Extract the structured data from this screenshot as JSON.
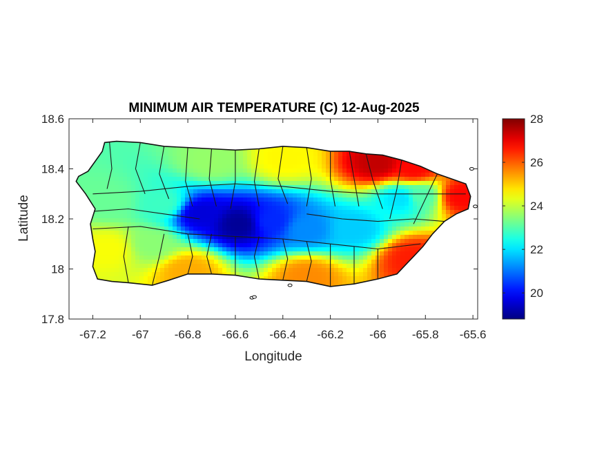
{
  "chart_data": {
    "type": "heatmap",
    "title": "MINIMUM AIR TEMPERATURE (C) 12-Aug-2025",
    "xlabel": "Longitude",
    "ylabel": "Latitude",
    "xlim": [
      -67.3,
      -65.58
    ],
    "ylim": [
      17.8,
      18.6
    ],
    "xticks": [
      -67.2,
      -67,
      -66.8,
      -66.6,
      -66.4,
      -66.2,
      -66,
      -65.8,
      -65.6
    ],
    "xtick_labels": [
      "-67.2",
      "-67",
      "-66.8",
      "-66.6",
      "-66.4",
      "-66.2",
      "-66",
      "-65.8",
      "-65.6"
    ],
    "yticks": [
      17.8,
      18,
      18.2,
      18.4,
      18.6
    ],
    "ytick_labels": [
      "17.8",
      "18",
      "18.2",
      "18.4",
      "18.6"
    ],
    "colorbar": {
      "colormap": "jet",
      "range": [
        18.8,
        28
      ],
      "ticks": [
        20,
        22,
        24,
        26,
        28
      ],
      "tick_labels": [
        "20",
        "22",
        "24",
        "26",
        "28"
      ]
    },
    "grid": false,
    "island_outline": [
      [
        -67.26,
        18.37
      ],
      [
        -67.22,
        18.39
      ],
      [
        -67.19,
        18.43
      ],
      [
        -67.16,
        18.47
      ],
      [
        -67.15,
        18.505
      ],
      [
        -67.1,
        18.51
      ],
      [
        -67.0,
        18.505
      ],
      [
        -66.9,
        18.49
      ],
      [
        -66.8,
        18.485
      ],
      [
        -66.7,
        18.48
      ],
      [
        -66.6,
        18.475
      ],
      [
        -66.5,
        18.48
      ],
      [
        -66.4,
        18.49
      ],
      [
        -66.3,
        18.485
      ],
      [
        -66.2,
        18.47
      ],
      [
        -66.12,
        18.47
      ],
      [
        -66.05,
        18.46
      ],
      [
        -65.98,
        18.455
      ],
      [
        -65.9,
        18.435
      ],
      [
        -65.82,
        18.41
      ],
      [
        -65.75,
        18.38
      ],
      [
        -65.69,
        18.36
      ],
      [
        -65.63,
        18.34
      ],
      [
        -65.61,
        18.29
      ],
      [
        -65.62,
        18.24
      ],
      [
        -65.67,
        18.22
      ],
      [
        -65.72,
        18.19
      ],
      [
        -65.77,
        18.14
      ],
      [
        -65.81,
        18.09
      ],
      [
        -65.85,
        18.05
      ],
      [
        -65.88,
        18.02
      ],
      [
        -65.92,
        17.98
      ],
      [
        -66.0,
        17.96
      ],
      [
        -66.1,
        17.94
      ],
      [
        -66.2,
        17.93
      ],
      [
        -66.3,
        17.95
      ],
      [
        -66.4,
        17.955
      ],
      [
        -66.5,
        17.96
      ],
      [
        -66.6,
        17.975
      ],
      [
        -66.7,
        17.98
      ],
      [
        -66.8,
        17.98
      ],
      [
        -66.88,
        17.955
      ],
      [
        -66.95,
        17.935
      ],
      [
        -67.05,
        17.945
      ],
      [
        -67.12,
        17.95
      ],
      [
        -67.18,
        17.96
      ],
      [
        -67.2,
        18.01
      ],
      [
        -67.19,
        18.07
      ],
      [
        -67.2,
        18.12
      ],
      [
        -67.21,
        18.18
      ],
      [
        -67.19,
        18.24
      ],
      [
        -67.23,
        18.3
      ],
      [
        -67.27,
        18.35
      ]
    ],
    "temperature_centers": [
      {
        "lon": -66.58,
        "lat": 18.18,
        "value": 19.0,
        "radius": 0.09
      },
      {
        "lon": -66.75,
        "lat": 18.22,
        "value": 19.6,
        "radius": 0.07
      },
      {
        "lon": -66.45,
        "lat": 18.19,
        "value": 20.3,
        "radius": 0.08
      },
      {
        "lon": -66.3,
        "lat": 18.16,
        "value": 21.2,
        "radius": 0.07
      },
      {
        "lon": -66.1,
        "lat": 18.16,
        "value": 21.8,
        "radius": 0.07
      },
      {
        "lon": -65.9,
        "lat": 18.28,
        "value": 22.0,
        "radius": 0.06
      },
      {
        "lon": -65.82,
        "lat": 18.29,
        "value": 23.0,
        "radius": 0.05
      },
      {
        "lon": -66.9,
        "lat": 18.26,
        "value": 22.8,
        "radius": 0.09
      },
      {
        "lon": -66.95,
        "lat": 18.1,
        "value": 23.5,
        "radius": 0.08
      },
      {
        "lon": -67.13,
        "lat": 18.08,
        "value": 24.5,
        "radius": 0.08
      },
      {
        "lon": -66.0,
        "lat": 18.42,
        "value": 27.4,
        "radius": 0.08
      },
      {
        "lon": -65.85,
        "lat": 18.4,
        "value": 26.8,
        "radius": 0.07
      },
      {
        "lon": -65.65,
        "lat": 18.29,
        "value": 26.8,
        "radius": 0.05
      },
      {
        "lon": -65.85,
        "lat": 18.04,
        "value": 26.6,
        "radius": 0.06
      },
      {
        "lon": -66.3,
        "lat": 17.97,
        "value": 25.6,
        "radius": 0.08
      },
      {
        "lon": -66.8,
        "lat": 17.99,
        "value": 25.3,
        "radius": 0.05
      },
      {
        "lon": -67.13,
        "lat": 18.27,
        "value": 23.2,
        "radius": 0.06
      },
      {
        "lon": -66.4,
        "lat": 18.44,
        "value": 24.6,
        "radius": 0.1
      },
      {
        "lon": -66.7,
        "lat": 18.43,
        "value": 23.6,
        "radius": 0.08
      }
    ],
    "municipality_boundaries": [
      [
        [
          -67.13,
          18.51
        ],
        [
          -67.12,
          18.4
        ],
        [
          -67.14,
          18.32
        ]
      ],
      [
        [
          -67.0,
          18.505
        ],
        [
          -67.02,
          18.4
        ],
        [
          -66.98,
          18.3
        ]
      ],
      [
        [
          -66.9,
          18.49
        ],
        [
          -66.92,
          18.38
        ],
        [
          -66.88,
          18.28
        ]
      ],
      [
        [
          -66.8,
          18.485
        ],
        [
          -66.81,
          18.35
        ],
        [
          -66.78,
          18.25
        ]
      ],
      [
        [
          -66.7,
          18.48
        ],
        [
          -66.71,
          18.36
        ],
        [
          -66.68,
          18.25
        ]
      ],
      [
        [
          -66.6,
          18.475
        ],
        [
          -66.6,
          18.35
        ],
        [
          -66.62,
          18.24
        ]
      ],
      [
        [
          -66.5,
          18.48
        ],
        [
          -66.52,
          18.35
        ],
        [
          -66.5,
          18.25
        ]
      ],
      [
        [
          -66.4,
          18.49
        ],
        [
          -66.42,
          18.36
        ],
        [
          -66.38,
          18.26
        ]
      ],
      [
        [
          -66.3,
          18.485
        ],
        [
          -66.28,
          18.36
        ],
        [
          -66.3,
          18.25
        ]
      ],
      [
        [
          -66.2,
          18.47
        ],
        [
          -66.2,
          18.36
        ],
        [
          -66.18,
          18.25
        ]
      ],
      [
        [
          -66.12,
          18.47
        ],
        [
          -66.1,
          18.36
        ],
        [
          -66.08,
          18.25
        ]
      ],
      [
        [
          -66.05,
          18.46
        ],
        [
          -66.02,
          18.35
        ],
        [
          -65.98,
          18.24
        ]
      ],
      [
        [
          -65.9,
          18.435
        ],
        [
          -65.92,
          18.32
        ],
        [
          -65.95,
          18.2
        ]
      ],
      [
        [
          -65.75,
          18.38
        ],
        [
          -65.8,
          18.28
        ],
        [
          -65.85,
          18.18
        ]
      ],
      [
        [
          -67.2,
          18.16
        ],
        [
          -67.0,
          18.17
        ],
        [
          -66.8,
          18.14
        ],
        [
          -66.6,
          18.13
        ],
        [
          -66.4,
          18.12
        ],
        [
          -66.2,
          18.1
        ],
        [
          -66.0,
          18.08
        ],
        [
          -65.82,
          18.1
        ]
      ],
      [
        [
          -67.2,
          18.3
        ],
        [
          -67.0,
          18.31
        ],
        [
          -66.8,
          18.33
        ],
        [
          -66.6,
          18.34
        ],
        [
          -66.4,
          18.33
        ],
        [
          -66.2,
          18.31
        ],
        [
          -66.0,
          18.3
        ],
        [
          -65.8,
          18.3
        ],
        [
          -65.63,
          18.3
        ]
      ],
      [
        [
          -67.05,
          18.17
        ],
        [
          -67.07,
          18.05
        ],
        [
          -67.05,
          17.945
        ]
      ],
      [
        [
          -66.9,
          18.14
        ],
        [
          -66.92,
          18.05
        ],
        [
          -66.95,
          17.935
        ]
      ],
      [
        [
          -66.8,
          18.14
        ],
        [
          -66.78,
          18.05
        ],
        [
          -66.8,
          17.98
        ]
      ],
      [
        [
          -66.7,
          18.14
        ],
        [
          -66.72,
          18.05
        ],
        [
          -66.7,
          17.98
        ]
      ],
      [
        [
          -66.6,
          18.13
        ],
        [
          -66.6,
          18.05
        ],
        [
          -66.6,
          17.975
        ]
      ],
      [
        [
          -66.5,
          18.13
        ],
        [
          -66.52,
          18.05
        ],
        [
          -66.5,
          17.96
        ]
      ],
      [
        [
          -66.4,
          18.12
        ],
        [
          -66.38,
          18.04
        ],
        [
          -66.4,
          17.955
        ]
      ],
      [
        [
          -66.3,
          18.11
        ],
        [
          -66.28,
          18.03
        ],
        [
          -66.3,
          17.95
        ]
      ],
      [
        [
          -66.2,
          18.1
        ],
        [
          -66.2,
          18.02
        ],
        [
          -66.2,
          17.93
        ]
      ],
      [
        [
          -66.1,
          18.09
        ],
        [
          -66.1,
          18.01
        ],
        [
          -66.1,
          17.94
        ]
      ],
      [
        [
          -66.0,
          18.08
        ],
        [
          -66.0,
          18.02
        ],
        [
          -66.0,
          17.96
        ]
      ],
      [
        [
          -67.2,
          18.23
        ],
        [
          -67.05,
          18.24
        ],
        [
          -66.9,
          18.22
        ],
        [
          -66.75,
          18.2
        ]
      ],
      [
        [
          -66.3,
          18.22
        ],
        [
          -66.15,
          18.2
        ],
        [
          -66.0,
          18.19
        ],
        [
          -65.85,
          18.2
        ],
        [
          -65.72,
          18.19
        ]
      ]
    ],
    "islets": [
      {
        "lon": -66.53,
        "lat": 17.885
      },
      {
        "lon": -66.52,
        "lat": 17.888
      },
      {
        "lon": -66.37,
        "lat": 17.935
      },
      {
        "lon": -65.605,
        "lat": 18.4
      },
      {
        "lon": -65.59,
        "lat": 18.25
      }
    ]
  }
}
